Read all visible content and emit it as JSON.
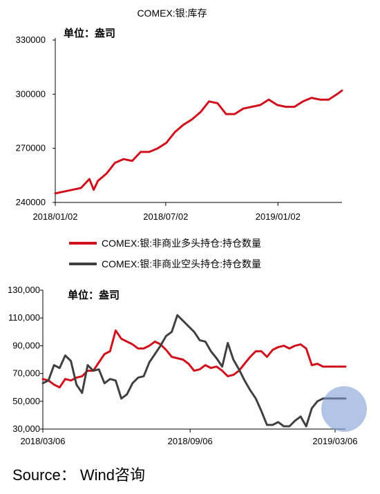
{
  "charts": [
    {
      "title": "COMEX:银:库存",
      "unit_label": "单位：盎司"
    },
    {
      "title": "",
      "unit_label": "单位：盎司"
    }
  ],
  "source": "Source：  Wind咨询",
  "colors": {
    "red": "#d0101c",
    "dark": "#404040",
    "highlight": "#7f9fd4"
  },
  "chart_data": [
    {
      "type": "line",
      "title": "COMEX:银:库存",
      "xlabel": "",
      "ylabel": "",
      "ylim": [
        240000,
        330000
      ],
      "yticks": [
        "240000",
        "270000",
        "300000",
        "330000"
      ],
      "xticks": [
        "2018/01/02",
        "2018/07/02",
        "2019/01/02"
      ],
      "x_domain": [
        "2018/01/02",
        "2019/04/17"
      ],
      "series": [
        {
          "color": "#d0101c",
          "x": [
            "2018/01/02",
            "2018/01/16",
            "2018/01/30",
            "2018/02/13",
            "2018/02/27",
            "2018/03/06",
            "2018/03/13",
            "2018/03/27",
            "2018/04/10",
            "2018/04/24",
            "2018/05/08",
            "2018/05/22",
            "2018/06/05",
            "2018/06/19",
            "2018/07/03",
            "2018/07/17",
            "2018/07/31",
            "2018/08/14",
            "2018/08/28",
            "2018/09/11",
            "2018/09/25",
            "2018/10/09",
            "2018/10/23",
            "2018/11/06",
            "2018/11/20",
            "2018/12/04",
            "2018/12/18",
            "2019/01/01",
            "2019/01/15",
            "2019/01/29",
            "2019/02/12",
            "2019/02/26",
            "2019/03/12",
            "2019/03/26",
            "2019/04/09",
            "2019/04/17"
          ],
          "values": [
            245000,
            246000,
            247000,
            248000,
            253000,
            247000,
            252000,
            256000,
            262000,
            264000,
            263000,
            268000,
            268000,
            270000,
            273000,
            279000,
            283000,
            286000,
            290000,
            296000,
            295000,
            289000,
            289000,
            292000,
            293000,
            294000,
            297000,
            294000,
            293000,
            293000,
            296000,
            298000,
            297000,
            297000,
            300000,
            302000
          ]
        }
      ]
    },
    {
      "type": "line",
      "title": "",
      "xlabel": "",
      "ylabel": "",
      "ylim": [
        30000,
        130000
      ],
      "yticks": [
        "30,000",
        "50,000",
        "70,000",
        "90,000",
        "110,000",
        "130,000"
      ],
      "xticks": [
        "2018/03/06",
        "2018/09/06",
        "2019/03/06"
      ],
      "x_domain": [
        "2018/03/06",
        "2019/03/19"
      ],
      "series": [
        {
          "name": "COMEX:银:非商业多头持仓:持仓数量",
          "color": "#d0101c",
          "x": [
            "2018/03/06",
            "2018/03/13",
            "2018/03/20",
            "2018/03/27",
            "2018/04/03",
            "2018/04/10",
            "2018/04/17",
            "2018/04/24",
            "2018/05/01",
            "2018/05/08",
            "2018/05/15",
            "2018/05/22",
            "2018/05/29",
            "2018/06/05",
            "2018/06/12",
            "2018/06/19",
            "2018/06/26",
            "2018/07/03",
            "2018/07/10",
            "2018/07/17",
            "2018/07/24",
            "2018/07/31",
            "2018/08/07",
            "2018/08/14",
            "2018/08/21",
            "2018/08/28",
            "2018/09/04",
            "2018/09/11",
            "2018/09/18",
            "2018/09/25",
            "2018/10/02",
            "2018/10/09",
            "2018/10/16",
            "2018/10/23",
            "2018/10/30",
            "2018/11/06",
            "2018/11/13",
            "2018/11/20",
            "2018/11/27",
            "2018/12/04",
            "2018/12/11",
            "2018/12/18",
            "2018/12/25",
            "2019/01/01",
            "2019/01/08",
            "2019/01/15",
            "2019/01/22",
            "2019/01/29",
            "2019/02/05",
            "2019/02/12",
            "2019/02/19",
            "2019/02/26",
            "2019/03/05",
            "2019/03/12",
            "2019/03/19"
          ],
          "values": [
            66000,
            65000,
            62000,
            60000,
            66000,
            65000,
            67000,
            68000,
            72000,
            72000,
            78000,
            84000,
            86000,
            101000,
            95000,
            93000,
            91000,
            88000,
            88000,
            90000,
            93000,
            91000,
            87000,
            82000,
            81000,
            80000,
            77000,
            72000,
            73000,
            76000,
            74000,
            75000,
            72000,
            68000,
            69000,
            72000,
            77000,
            82000,
            86000,
            86000,
            82000,
            87000,
            89000,
            90000,
            88000,
            90000,
            91000,
            88000,
            76000,
            77000,
            75000,
            75000,
            75000,
            75000,
            75000
          ]
        },
        {
          "name": "COMEX:银:非商业空头持仓:持仓数量",
          "color": "#404040",
          "x": [
            "2018/03/06",
            "2018/03/13",
            "2018/03/20",
            "2018/03/27",
            "2018/04/03",
            "2018/04/10",
            "2018/04/17",
            "2018/04/24",
            "2018/05/01",
            "2018/05/08",
            "2018/05/15",
            "2018/05/22",
            "2018/05/29",
            "2018/06/05",
            "2018/06/12",
            "2018/06/19",
            "2018/06/26",
            "2018/07/03",
            "2018/07/10",
            "2018/07/17",
            "2018/07/24",
            "2018/07/31",
            "2018/08/07",
            "2018/08/14",
            "2018/08/21",
            "2018/08/28",
            "2018/09/04",
            "2018/09/11",
            "2018/09/18",
            "2018/09/25",
            "2018/10/02",
            "2018/10/09",
            "2018/10/16",
            "2018/10/23",
            "2018/10/30",
            "2018/11/06",
            "2018/11/13",
            "2018/11/20",
            "2018/11/27",
            "2018/12/04",
            "2018/12/11",
            "2018/12/18",
            "2018/12/25",
            "2019/01/01",
            "2019/01/08",
            "2019/01/15",
            "2019/01/22",
            "2019/01/29",
            "2019/02/05",
            "2019/02/12",
            "2019/02/19",
            "2019/02/26",
            "2019/03/05",
            "2019/03/12",
            "2019/03/19"
          ],
          "values": [
            63000,
            65000,
            76000,
            74000,
            83000,
            79000,
            62000,
            56000,
            76000,
            72000,
            73000,
            63000,
            66000,
            65000,
            52000,
            55000,
            63000,
            67000,
            68000,
            78000,
            84000,
            90000,
            97000,
            100000,
            112000,
            108000,
            104000,
            100000,
            94000,
            93000,
            86000,
            81000,
            75000,
            92000,
            80000,
            73000,
            65000,
            58000,
            52000,
            43000,
            33000,
            33000,
            35000,
            32000,
            32000,
            36000,
            39000,
            32000,
            45000,
            50000,
            52000,
            52000,
            52000,
            52000,
            52000
          ]
        }
      ]
    }
  ]
}
